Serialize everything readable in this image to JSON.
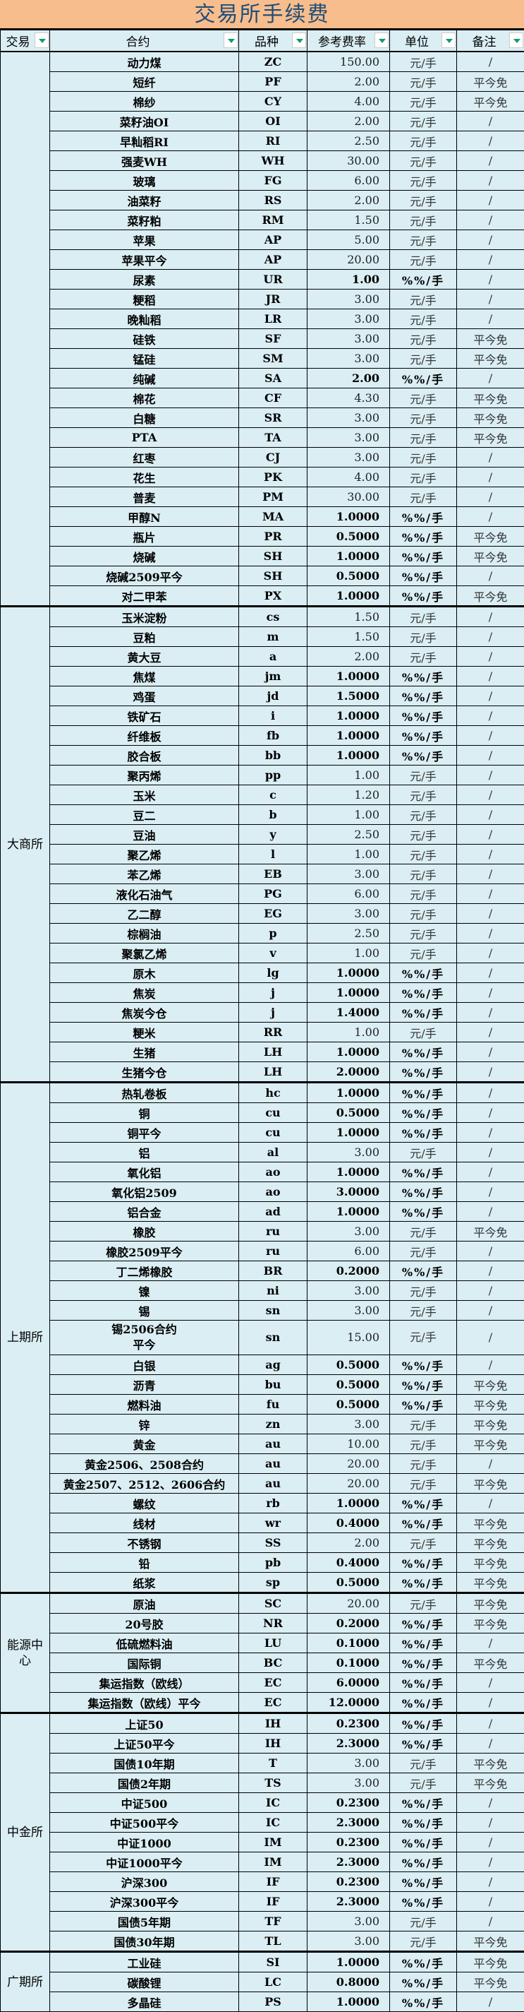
{
  "title": "交易所手续费",
  "headers": [
    "交易",
    "合约",
    "品种",
    "参考费率",
    "单位",
    "备注"
  ],
  "colors": {
    "title_bg": "#F8BD8C",
    "title_text": "#1F4E79",
    "cell_bg": "#DAEEF3",
    "filter_arrow": "#139A6B"
  },
  "groups": [
    {
      "exchange": "",
      "rows": [
        [
          "动力煤",
          "ZC",
          "150.00",
          "元/手",
          "/"
        ],
        [
          "短纤",
          "PF",
          "2.00",
          "元/手",
          "平今免"
        ],
        [
          "棉纱",
          "CY",
          "4.00",
          "元/手",
          "平今免"
        ],
        [
          "菜籽油OI",
          "OI",
          "2.00",
          "元/手",
          "/"
        ],
        [
          "早籼稻RI",
          "RI",
          "2.50",
          "元/手",
          "/"
        ],
        [
          "强麦WH",
          "WH",
          "30.00",
          "元/手",
          "/"
        ],
        [
          "玻璃",
          "FG",
          "6.00",
          "元/手",
          "/"
        ],
        [
          "油菜籽",
          "RS",
          "2.00",
          "元/手",
          "/"
        ],
        [
          "菜籽粕",
          "RM",
          "1.50",
          "元/手",
          "/"
        ],
        [
          "苹果",
          "AP",
          "5.00",
          "元/手",
          "/"
        ],
        [
          "苹果平今",
          "AP",
          "20.00",
          "元/手",
          "/"
        ],
        [
          "尿素",
          "UR",
          "1.00",
          "%%/手",
          "/"
        ],
        [
          "粳稻",
          "JR",
          "3.00",
          "元/手",
          "/"
        ],
        [
          "晚籼稻",
          "LR",
          "3.00",
          "元/手",
          "/"
        ],
        [
          "硅铁",
          "SF",
          "3.00",
          "元/手",
          "平今免"
        ],
        [
          "锰硅",
          "SM",
          "3.00",
          "元/手",
          "平今免"
        ],
        [
          "纯碱",
          "SA",
          "2.00",
          "%%/手",
          "/"
        ],
        [
          "棉花",
          "CF",
          "4.30",
          "元/手",
          "平今免"
        ],
        [
          "白糖",
          "SR",
          "3.00",
          "元/手",
          "平今免"
        ],
        [
          "PTA",
          "TA",
          "3.00",
          "元/手",
          "平今免"
        ],
        [
          "红枣",
          "CJ",
          "3.00",
          "元/手",
          "/"
        ],
        [
          "花生",
          "PK",
          "4.00",
          "元/手",
          "/"
        ],
        [
          "普麦",
          "PM",
          "30.00",
          "元/手",
          "/"
        ],
        [
          "甲醇N",
          "MA",
          "1.0000",
          "%%/手",
          "/"
        ],
        [
          "瓶片",
          "PR",
          "0.5000",
          "%%/手",
          "平今免"
        ],
        [
          "烧碱",
          "SH",
          "1.0000",
          "%%/手",
          "平今免"
        ],
        [
          "烧碱2509平今",
          "SH",
          "0.5000",
          "%%/手",
          "/"
        ],
        [
          "对二甲苯",
          "PX",
          "1.0000",
          "%%/手",
          "平今免"
        ]
      ]
    },
    {
      "exchange": "大商所",
      "rows": [
        [
          "玉米淀粉",
          "cs",
          "1.50",
          "元/手",
          "/"
        ],
        [
          "豆粕",
          "m",
          "1.50",
          "元/手",
          "/"
        ],
        [
          "黄大豆",
          "a",
          "2.00",
          "元/手",
          "/"
        ],
        [
          "焦煤",
          "jm",
          "1.0000",
          "%%/手",
          "/"
        ],
        [
          "鸡蛋",
          "jd",
          "1.5000",
          "%%/手",
          "/"
        ],
        [
          "铁矿石",
          "i",
          "1.0000",
          "%%/手",
          "/"
        ],
        [
          "纤维板",
          "fb",
          "1.0000",
          "%%/手",
          "/"
        ],
        [
          "胶合板",
          "bb",
          "1.0000",
          "%%/手",
          "/"
        ],
        [
          "聚丙烯",
          "pp",
          "1.00",
          "元/手",
          "/"
        ],
        [
          "玉米",
          "c",
          "1.20",
          "元/手",
          "/"
        ],
        [
          "豆二",
          "b",
          "1.00",
          "元/手",
          "/"
        ],
        [
          "豆油",
          "y",
          "2.50",
          "元/手",
          "/"
        ],
        [
          "聚乙烯",
          "l",
          "1.00",
          "元/手",
          "/"
        ],
        [
          "苯乙烯",
          "EB",
          "3.00",
          "元/手",
          "/"
        ],
        [
          "液化石油气",
          "PG",
          "6.00",
          "元/手",
          "/"
        ],
        [
          "乙二醇",
          "EG",
          "3.00",
          "元/手",
          "/"
        ],
        [
          "棕榈油",
          "p",
          "2.50",
          "元/手",
          "/"
        ],
        [
          "聚氯乙烯",
          "v",
          "1.00",
          "元/手",
          "/"
        ],
        [
          "原木",
          "lg",
          "1.0000",
          "%%/手",
          "/"
        ],
        [
          "焦炭",
          "j",
          "1.0000",
          "%%/手",
          "/"
        ],
        [
          "焦炭今仓",
          "j",
          "1.4000",
          "%%/手",
          "/"
        ],
        [
          "粳米",
          "RR",
          "1.00",
          "元/手",
          "/"
        ],
        [
          "生猪",
          "LH",
          "1.0000",
          "%%/手",
          "/"
        ],
        [
          "生猪今仓",
          "LH",
          "2.0000",
          "%%/手",
          "/"
        ]
      ]
    },
    {
      "exchange": "上期所",
      "rows": [
        [
          "热轧卷板",
          "hc",
          "1.0000",
          "%%/手",
          "/"
        ],
        [
          "铜",
          "cu",
          "0.5000",
          "%%/手",
          "/"
        ],
        [
          "铜平今",
          "cu",
          "1.0000",
          "%%/手",
          "/"
        ],
        [
          "铝",
          "al",
          "3.00",
          "元/手",
          "/"
        ],
        [
          "氧化铝",
          "ao",
          "1.0000",
          "%%/手",
          "/"
        ],
        [
          "氧化铝2509",
          "ao",
          "3.0000",
          "%%/手",
          "/"
        ],
        [
          "铝合金",
          "ad",
          "1.0000",
          "%%/手",
          "/"
        ],
        [
          "橡胶",
          "ru",
          "3.00",
          "元/手",
          "平今免"
        ],
        [
          "橡胶2509平今",
          "ru",
          "6.00",
          "元/手",
          "/"
        ],
        [
          "丁二烯橡胶",
          "BR",
          "0.2000",
          "%%/手",
          "/"
        ],
        [
          "镍",
          "ni",
          "3.00",
          "元/手",
          "/"
        ],
        [
          "锡",
          "sn",
          "3.00",
          "元/手",
          "/"
        ],
        [
          "锡2506合约\n平今",
          "sn",
          "15.00",
          "元/手",
          "/"
        ],
        [
          "白银",
          "ag",
          "0.5000",
          "%%/手",
          "/"
        ],
        [
          "沥青",
          "bu",
          "0.5000",
          "%%/手",
          "平今免"
        ],
        [
          "燃料油",
          "fu",
          "0.5000",
          "%%/手",
          "平今免"
        ],
        [
          "锌",
          "zn",
          "3.00",
          "元/手",
          "平今免"
        ],
        [
          "黄金",
          "au",
          "10.00",
          "元/手",
          "平今免"
        ],
        [
          "黄金2506、2508合约",
          "au",
          "20.00",
          "元/手",
          "/"
        ],
        [
          "黄金2507、2512、2606合约",
          "au",
          "20.00",
          "元/手",
          "平今免"
        ],
        [
          "螺纹",
          "rb",
          "1.0000",
          "%%/手",
          "/"
        ],
        [
          "线材",
          "wr",
          "0.4000",
          "%%/手",
          "平今免"
        ],
        [
          "不锈钢",
          "SS",
          "2.00",
          "元/手",
          "平今免"
        ],
        [
          "铅",
          "pb",
          "0.4000",
          "%%/手",
          "平今免"
        ],
        [
          "纸浆",
          "sp",
          "0.5000",
          "%%/手",
          "平今免"
        ]
      ]
    },
    {
      "exchange": "能源中心",
      "rows": [
        [
          "原油",
          "SC",
          "20.00",
          "元/手",
          "平今免"
        ],
        [
          "20号胶",
          "NR",
          "0.2000",
          "%%/手",
          "平今免"
        ],
        [
          "低硫燃料油",
          "LU",
          "0.1000",
          "%%/手",
          "/"
        ],
        [
          "国际铜",
          "BC",
          "0.1000",
          "%%/手",
          "平今免"
        ],
        [
          "集运指数（欧线）",
          "EC",
          "6.0000",
          "%%/手",
          "/"
        ],
        [
          "集运指数（欧线）平今",
          "EC",
          "12.0000",
          "%%/手",
          "/"
        ]
      ]
    },
    {
      "exchange": "中金所",
      "rows": [
        [
          "上证50",
          "IH",
          "0.2300",
          "%%/手",
          "/"
        ],
        [
          "上证50平今",
          "IH",
          "2.3000",
          "%%/手",
          "/"
        ],
        [
          "国债10年期",
          "T",
          "3.00",
          "元/手",
          "平今免"
        ],
        [
          "国债2年期",
          "TS",
          "3.00",
          "元/手",
          "平今免"
        ],
        [
          "中证500",
          "IC",
          "0.2300",
          "%%/手",
          "/"
        ],
        [
          "中证500平今",
          "IC",
          "2.3000",
          "%%/手",
          "/"
        ],
        [
          "中证1000",
          "IM",
          "0.2300",
          "%%/手",
          "/"
        ],
        [
          "中证1000平今",
          "IM",
          "2.3000",
          "%%/手",
          "/"
        ],
        [
          "沪深300",
          "IF",
          "0.2300",
          "%%/手",
          "/"
        ],
        [
          "沪深300平今",
          "IF",
          "2.3000",
          "%%/手",
          "/"
        ],
        [
          "国债5年期",
          "TF",
          "3.00",
          "元/手",
          "/"
        ],
        [
          "国债30年期",
          "TL",
          "3.00",
          "元/手",
          "平今免"
        ]
      ]
    },
    {
      "exchange": "广期所",
      "rows": [
        [
          "工业硅",
          "SI",
          "1.0000",
          "%%/手",
          "平今免"
        ],
        [
          "碳酸锂",
          "LC",
          "0.8000",
          "%%/手",
          "平今免"
        ],
        [
          "多晶硅",
          "PS",
          "1.0000",
          "%%/手",
          "/"
        ]
      ]
    }
  ]
}
